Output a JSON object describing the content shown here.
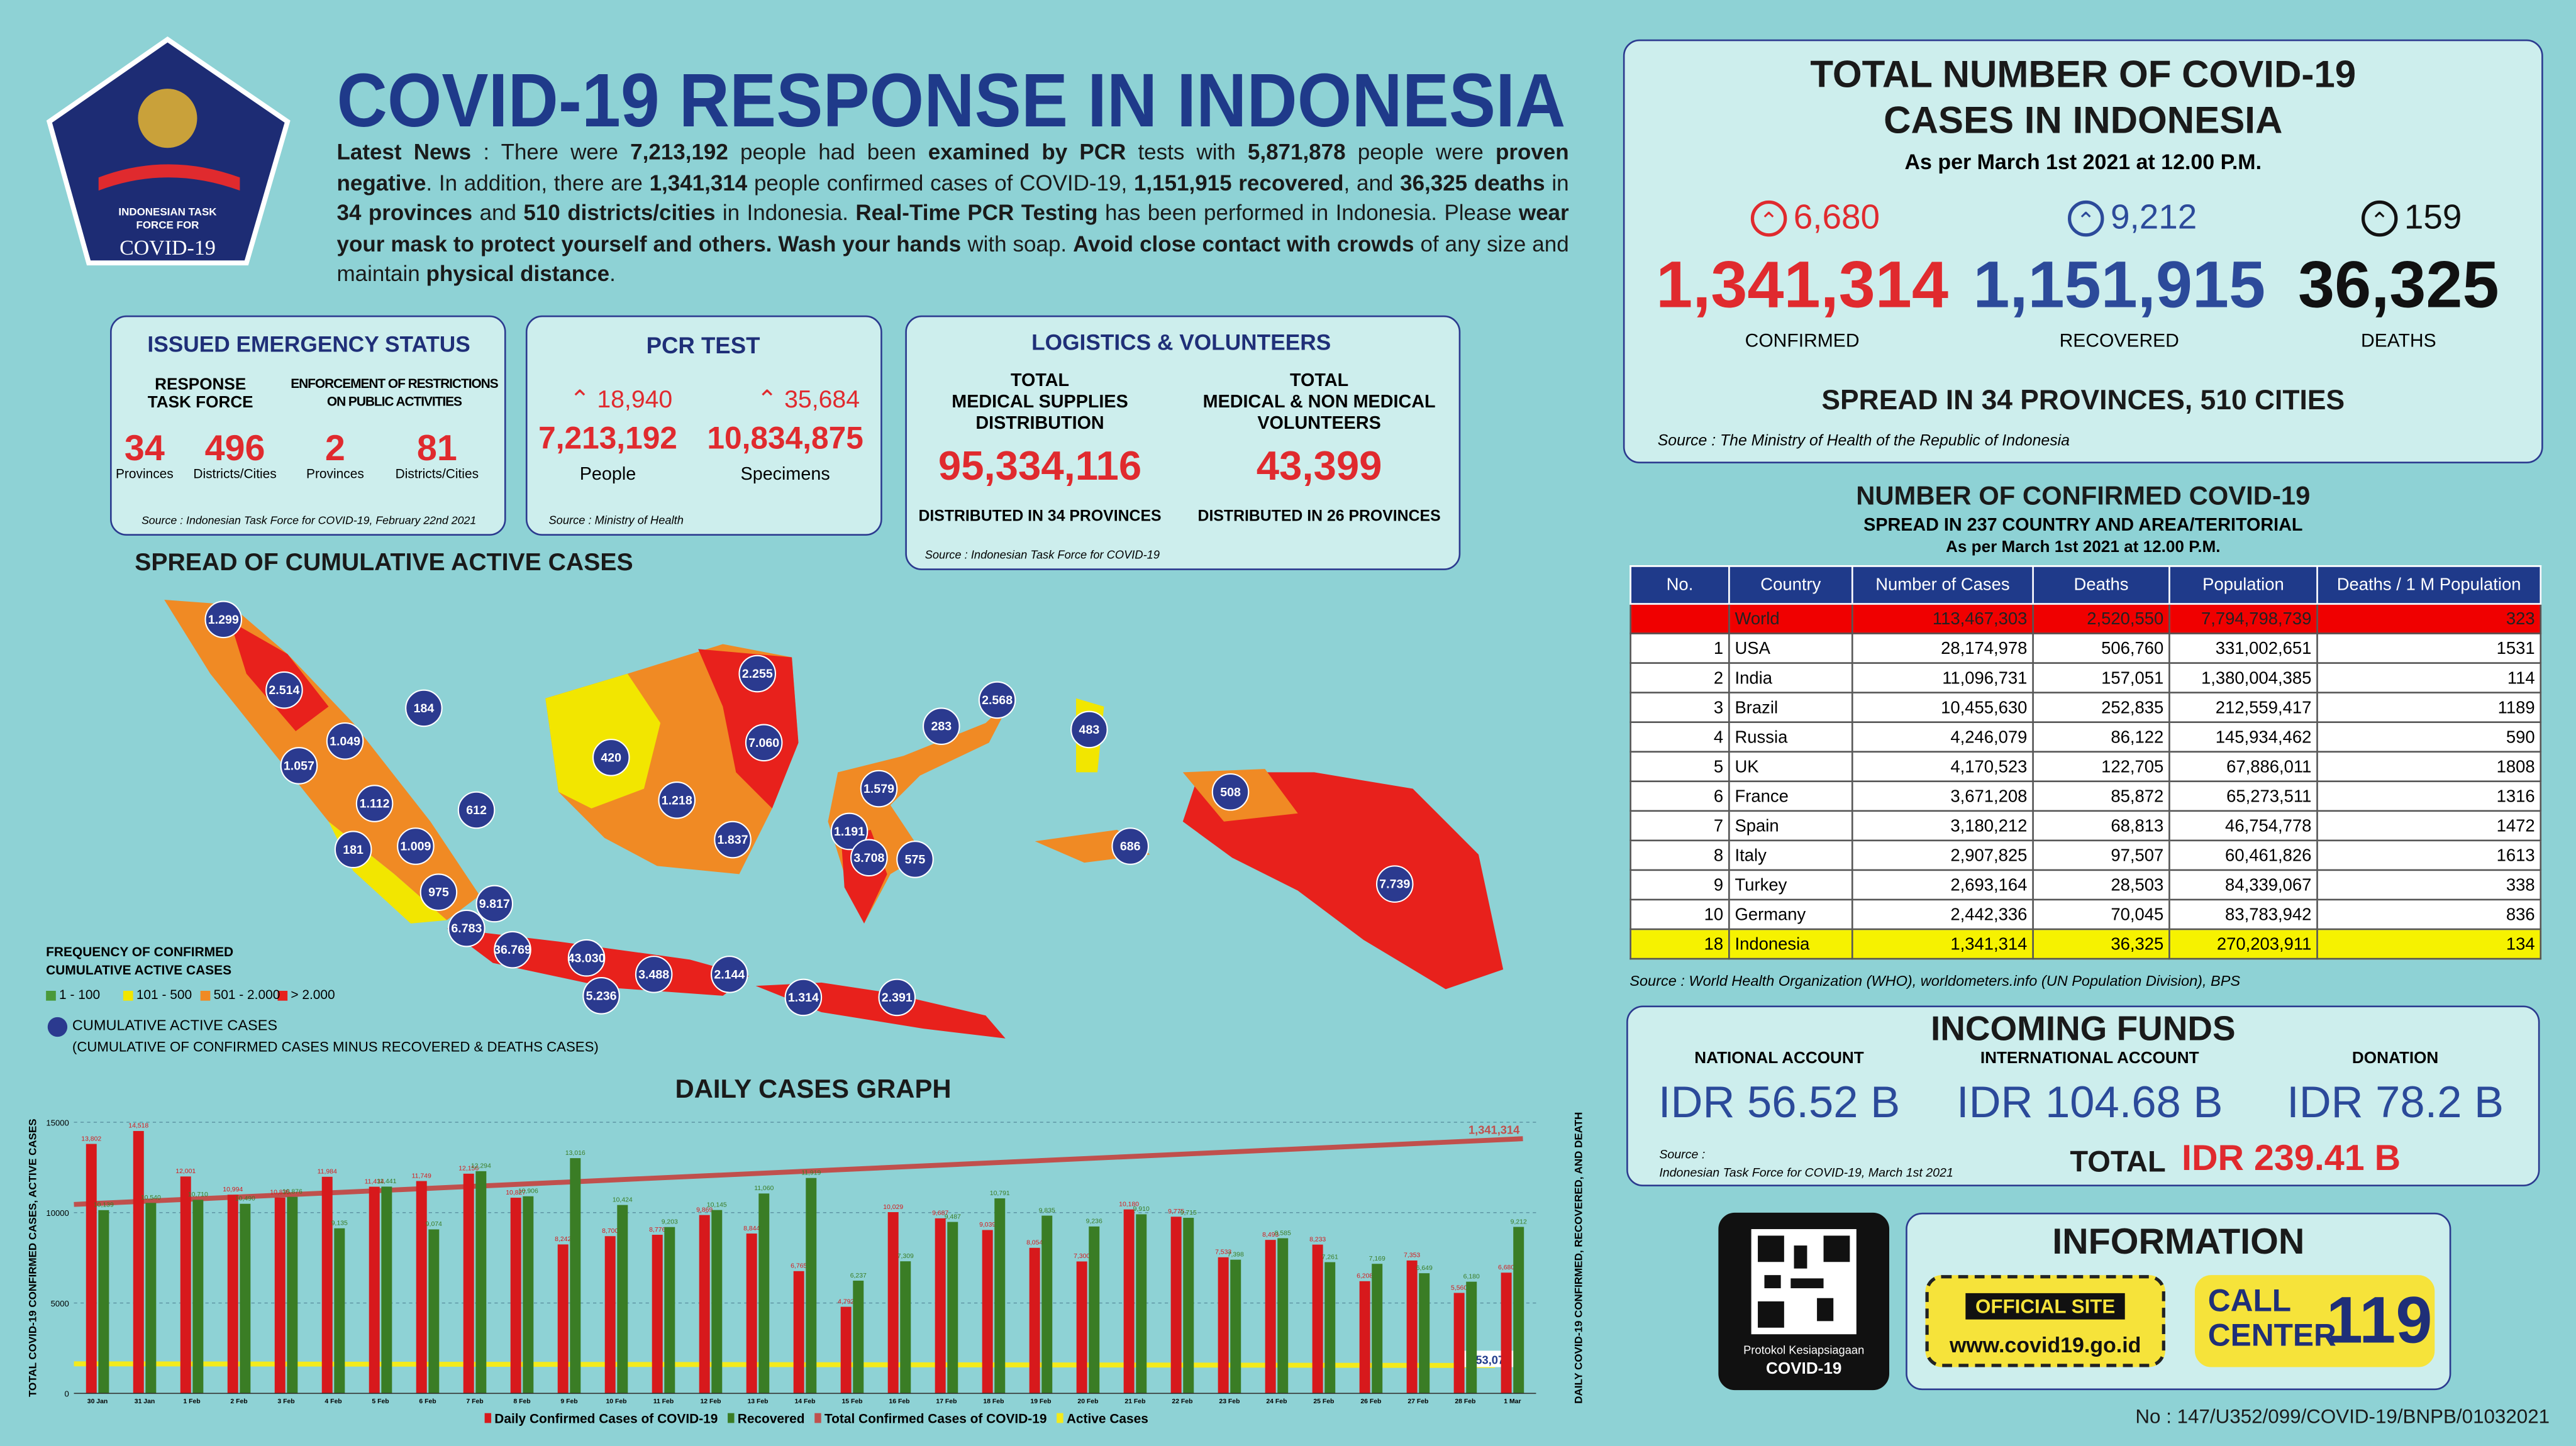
{
  "header": {
    "title": "COVID-19 RESPONSE IN INDONESIA",
    "logo": [
      "INDONESIAN TASK",
      "FORCE FOR",
      "COVID-19"
    ]
  },
  "news": [
    {
      "text": "Latest News",
      "bold": true
    },
    {
      "text": " : There were ",
      "bold": false
    },
    {
      "text": "7,213,192",
      "bold": true
    },
    {
      "text": " people had been ",
      "bold": false
    },
    {
      "text": "examined by PCR",
      "bold": true
    },
    {
      "text": " tests with ",
      "bold": false
    },
    {
      "text": "5,871,878",
      "bold": true
    },
    {
      "text": " people were ",
      "bold": false
    },
    {
      "text": "proven negative",
      "bold": true
    },
    {
      "text": ". In addition, there are ",
      "bold": false
    },
    {
      "text": "1,341,314",
      "bold": true
    },
    {
      "text": " people confirmed cases of COVID-19, ",
      "bold": false
    },
    {
      "text": "1,151,915 recovered",
      "bold": true
    },
    {
      "text": ", and ",
      "bold": false
    },
    {
      "text": "36,325 deaths",
      "bold": true
    },
    {
      "text": " in ",
      "bold": false
    },
    {
      "text": "34 provinces",
      "bold": true
    },
    {
      "text": " and ",
      "bold": false
    },
    {
      "text": "510 districts/cities",
      "bold": true
    },
    {
      "text": " in Indonesia. ",
      "bold": false
    },
    {
      "text": "Real-Time PCR Testing",
      "bold": true
    },
    {
      "text": " has been performed in Indonesia. Please ",
      "bold": false
    },
    {
      "text": "wear your mask to protect yourself and others. Wash your hands",
      "bold": true
    },
    {
      "text": " with soap. ",
      "bold": false
    },
    {
      "text": "Avoid close contact with crowds",
      "bold": true
    },
    {
      "text": " of any size and maintain ",
      "bold": false
    },
    {
      "text": "physical distance",
      "bold": true
    },
    {
      "text": ".",
      "bold": false
    }
  ],
  "emergency": {
    "title": "ISSUED EMERGENCY STATUS",
    "groups": [
      {
        "label": [
          "RESPONSE",
          "TASK FORCE"
        ],
        "items": [
          {
            "value": "34",
            "label": "Provinces"
          },
          {
            "value": "496",
            "label": "Districts/Cities"
          }
        ]
      },
      {
        "label": [
          "ENFORCEMENT OF RESTRICTIONS",
          "ON PUBLIC ACTIVITIES"
        ],
        "items": [
          {
            "value": "2",
            "label": "Provinces"
          },
          {
            "value": "81",
            "label": "Districts/Cities"
          }
        ]
      }
    ],
    "source": "Source : Indonesian Task Force for COVID-19, February 22nd 2021"
  },
  "pcr": {
    "title": "PCR TEST",
    "items": [
      {
        "increase": "18,940",
        "value": "7,213,192",
        "label": "People"
      },
      {
        "increase": "35,684",
        "value": "10,834,875",
        "label": "Specimens"
      }
    ],
    "source": "Source : Ministry of Health"
  },
  "logistics": {
    "title": "LOGISTICS & VOLUNTEERS",
    "items": [
      {
        "label": [
          "TOTAL",
          "MEDICAL SUPPLIES",
          "DISTRIBUTION"
        ],
        "value": "95,334,116",
        "note": "DISTRIBUTED IN 34 PROVINCES"
      },
      {
        "label": [
          "TOTAL",
          "MEDICAL & NON MEDICAL",
          "VOLUNTEERS"
        ],
        "value": "43,399",
        "note": "DISTRIBUTED IN 26 PROVINCES"
      }
    ],
    "source": "Source : Indonesian Task Force for COVID-19"
  },
  "totals": {
    "title": [
      "TOTAL NUMBER OF COVID-19",
      "CASES IN INDONESIA"
    ],
    "subtitle": "As per March 1st 2021 at 12.00 P.M.",
    "items": [
      {
        "increase": "6,680",
        "value": "1,341,314",
        "label": "CONFIRMED",
        "color": "#e02a2e"
      },
      {
        "increase": "9,212",
        "value": "1,151,915",
        "label": "RECOVERED",
        "color": "#2c4a9a"
      },
      {
        "increase": "159",
        "value": "36,325",
        "label": "DEATHS",
        "color": "#111111"
      }
    ],
    "spread": "SPREAD IN 34 PROVINCES, 510 CITIES",
    "source": "Source : The Ministry of Health of the Republic of Indonesia"
  },
  "world": {
    "title": "NUMBER OF CONFIRMED COVID-19",
    "subtitle": "SPREAD IN 237 COUNTRY AND AREA/TERITORIAL",
    "date": "As per March 1st 2021 at 12.00 P.M.",
    "columns": [
      "No.",
      "Country",
      "Number of Cases",
      "Deaths",
      "Population",
      "Deaths / 1 M Population"
    ],
    "rows": [
      [
        null,
        "World",
        "113,467,303",
        "2,520,550",
        "7,794,798,739",
        "323"
      ],
      [
        "1",
        "USA",
        "28,174,978",
        "506,760",
        "331,002,651",
        "1531"
      ],
      [
        "2",
        "India",
        "11,096,731",
        "157,051",
        "1,380,004,385",
        "114"
      ],
      [
        "3",
        "Brazil",
        "10,455,630",
        "252,835",
        "212,559,417",
        "1189"
      ],
      [
        "4",
        "Russia",
        "4,246,079",
        "86,122",
        "145,934,462",
        "590"
      ],
      [
        "5",
        "UK",
        "4,170,523",
        "122,705",
        "67,886,011",
        "1808"
      ],
      [
        "6",
        "France",
        "3,671,208",
        "85,872",
        "65,273,511",
        "1316"
      ],
      [
        "7",
        "Spain",
        "3,180,212",
        "68,813",
        "46,754,778",
        "1472"
      ],
      [
        "8",
        "Italy",
        "2,907,825",
        "97,507",
        "60,461,826",
        "1613"
      ],
      [
        "9",
        "Turkey",
        "2,693,164",
        "28,503",
        "84,339,067",
        "338"
      ],
      [
        "10",
        "Germany",
        "2,442,336",
        "70,045",
        "83,783,942",
        "836"
      ],
      [
        "18",
        "Indonesia",
        "1,341,314",
        "36,325",
        "270,203,911",
        "134"
      ]
    ],
    "source": "Source : World Health Organization (WHO), worldometers.info (UN Population Division), BPS"
  },
  "funds": {
    "title": "INCOMING FUNDS",
    "items": [
      {
        "label": "NATIONAL ACCOUNT",
        "value": "IDR 56.52 B"
      },
      {
        "label": "INTERNATIONAL ACCOUNT",
        "value": "IDR 104.68 B"
      },
      {
        "label": "DONATION",
        "value": "IDR 78.2 B"
      }
    ],
    "source": [
      "Source :",
      "Indonesian Task Force for COVID-19, March 1st 2021"
    ],
    "total_label": "TOTAL",
    "total": "IDR 239.41 B"
  },
  "info": {
    "title": "INFORMATION",
    "qr_caption": [
      "Protokol Kesiapsiagaan",
      "COVID-19"
    ],
    "site_label": "OFFICIAL SITE",
    "site": "www.covid19.go.id",
    "call": [
      "CALL",
      "CENTER"
    ],
    "call_number": "119"
  },
  "footer": "No : 147/U352/099/COVID-19/BNPB/01032021",
  "map": {
    "title": "SPREAD OF CUMULATIVE ACTIVE CASES",
    "legend_title": [
      "FREQUENCY OF CONFIRMED",
      "CUMULATIVE ACTIVE CASES"
    ],
    "legend": [
      {
        "label": "1 - 100",
        "color": "#4a9a3a"
      },
      {
        "label": "101 - 500",
        "color": "#f2e600"
      },
      {
        "label": "501 - 2.000",
        "color": "#f08a24"
      },
      {
        "label": "> 2.000",
        "color": "#e8211c"
      }
    ],
    "bubble_legend": "CUMULATIVE ACTIVE CASES",
    "bubble_note": "(CUMULATIVE OF CONFIRMED CASES MINUS RECOVERED & DEATHS CASES)",
    "bubbles": [
      "1.299",
      "2.514",
      "184",
      "1.057",
      "1.049",
      "1.112",
      "612",
      "181",
      "1.009",
      "975",
      "9.817",
      "6.783",
      "36.769",
      "43.030",
      "5.236",
      "3.488",
      "2.144",
      "1.314",
      "2.391",
      "420",
      "1.218",
      "1.837",
      "2.255",
      "7.060",
      "283",
      "2.568",
      "483",
      "1.579",
      "1.191",
      "3.708",
      "575",
      "686",
      "508",
      "7.739"
    ]
  },
  "chart_data": {
    "type": "bar",
    "title": "DAILY CASES GRAPH",
    "y_label": "TOTAL COVID-19 CONFIRMED CASES, ACTIVE CASES",
    "y2_label": "DAILY COVID-19 CONFIRMED, RECOVERED, AND DEATH",
    "categories": [
      "30 Jan",
      "31 Jan",
      "1 Feb",
      "2 Feb",
      "3 Feb",
      "4 Feb",
      "5 Feb",
      "6 Feb",
      "7 Feb",
      "8 Feb",
      "9 Feb",
      "10 Feb",
      "11 Feb",
      "12 Feb",
      "13 Feb",
      "14 Feb",
      "15 Feb",
      "16 Feb",
      "17 Feb",
      "18 Feb",
      "19 Feb",
      "20 Feb",
      "21 Feb",
      "22 Feb",
      "23 Feb",
      "24 Feb",
      "25 Feb",
      "26 Feb",
      "27 Feb",
      "28 Feb",
      "1 Mar"
    ],
    "series": [
      {
        "name": "Daily Confirmed Cases of COVID-19",
        "color": "#d7191c",
        "values": [
          13802,
          14518,
          12001,
          10994,
          10835,
          11984,
          11434,
          11749,
          12156,
          10827,
          8242,
          8700,
          8776,
          9869,
          8844,
          6765,
          4792,
          10029,
          9687,
          9039,
          8054,
          7300,
          10180,
          9775,
          7533,
          8493,
          8233,
          6208,
          7353,
          5560,
          6680
        ],
        "value_labels": [
          "13,802",
          "14,518",
          "12,001",
          "10,994",
          "10,835",
          "11,984",
          "11,434",
          "11,749",
          "12,156",
          "10,827",
          "8,242",
          "8,700",
          "8,776",
          "9,869",
          "8,844",
          "6,765",
          "4,792",
          "10,029",
          "9,687",
          "9,039",
          "8,054",
          "7,300",
          "10,180",
          "9,775",
          "7,533",
          "8,493",
          "8,233",
          "6,208",
          "7,353",
          "5,560",
          "6,680"
        ]
      },
      {
        "name": "Recovered",
        "color": "#3a7d25",
        "values": [
          10139,
          10540,
          10710,
          10490,
          10876,
          9135,
          11441,
          9074,
          12294,
          10906,
          13016,
          10424,
          9203,
          10145,
          11060,
          11919,
          6237,
          7309,
          9487,
          10791,
          9835,
          9236,
          9910,
          9715,
          7398,
          8585,
          7261,
          7169,
          6649,
          6180,
          9212
        ],
        "value_labels": [
          "10,139",
          "10,540",
          "10,710",
          "10,490",
          "10,876",
          "9,135",
          "11,441",
          "9,074",
          "12,294",
          "10,906",
          "13,016",
          "10,424",
          "9,203",
          "10,145",
          "11,060",
          "11,919",
          "6,237",
          "7,309",
          "9,487",
          "10,791",
          "9,835",
          "9,236",
          "9,910",
          "9,715",
          "7,398",
          "8,585",
          "7,261",
          "7,169",
          "6,649",
          "6,180",
          "9,212"
        ]
      }
    ],
    "lines": [
      {
        "name": "Total Confirmed Cases of COVID-19",
        "color": "#c0504d",
        "label": "1,341,314"
      },
      {
        "name": "Active Cases",
        "color": "#f4ea1b",
        "label": "153,074"
      }
    ],
    "ylim": [
      0,
      15000
    ],
    "yticks": [
      0,
      5000,
      10000,
      15000
    ],
    "grid": true
  }
}
